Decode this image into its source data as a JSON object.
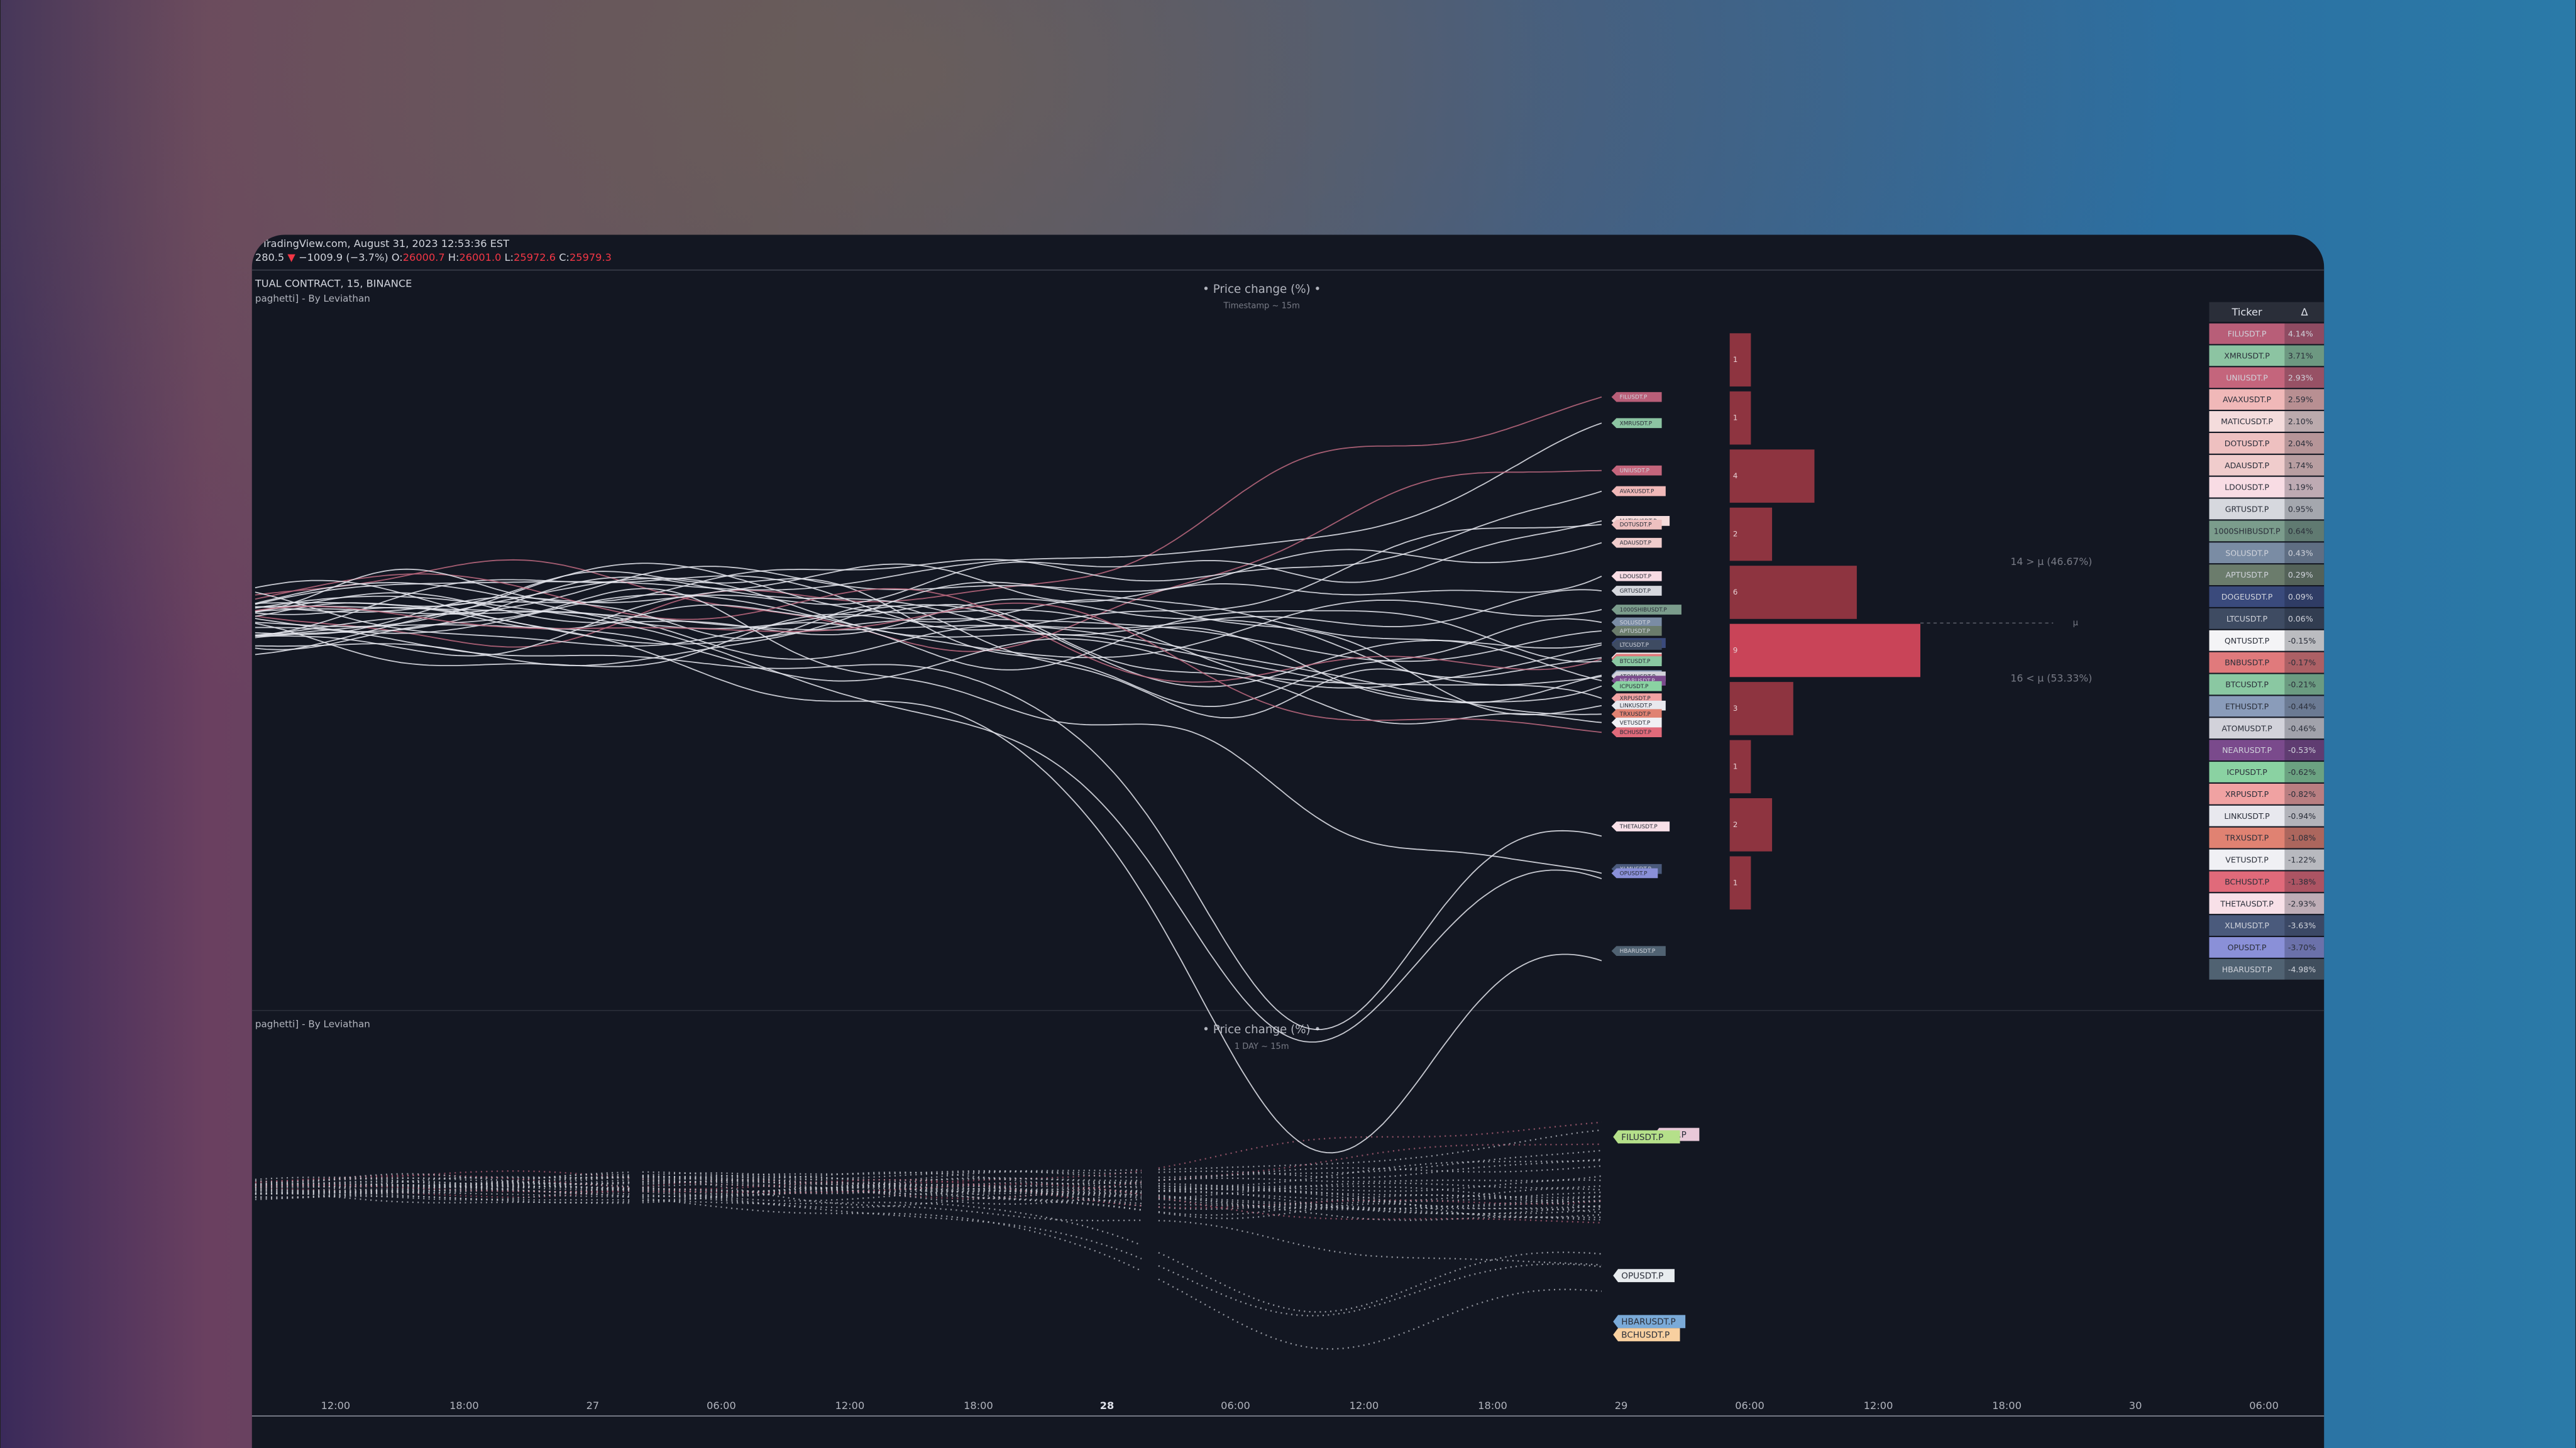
{
  "header": {
    "source": "TradingView.com, August 31, 2023 12:53:36 EST",
    "last": "280.5",
    "arrow": "▼",
    "change": "−1009.9 (−3.7%)",
    "ohlc": [
      {
        "key": "O:",
        "value": "26000.7"
      },
      {
        "key": "H:",
        "value": "26001.0"
      },
      {
        "key": "L:",
        "value": "25972.6"
      },
      {
        "key": "C:",
        "value": "25979.3"
      }
    ]
  },
  "pane1": {
    "symbol": "TUAL CONTRACT, 15, BINANCE",
    "indicator": "paghetti] - By Leviathan",
    "title": "• Price change (%) •",
    "subtitle": "Timestamp ~ 15m"
  },
  "histogram": {
    "counts": [
      1,
      1,
      4,
      2,
      6,
      9,
      3,
      1,
      2,
      1
    ],
    "above": "14 > μ (46.67%)",
    "below": "16 < μ (53.33%)",
    "mean": "μ"
  },
  "table": {
    "headers": [
      "Ticker",
      "Δ"
    ],
    "rows": [
      {
        "ticker": "FILUSDT.P",
        "delta": "4.14%",
        "color": "#b85e78"
      },
      {
        "ticker": "XMRUSDT.P",
        "delta": "3.71%",
        "color": "#8cc4a2"
      },
      {
        "ticker": "UNIUSDT.P",
        "delta": "2.93%",
        "color": "#c4657c"
      },
      {
        "ticker": "AVAXUSDT.P",
        "delta": "2.59%",
        "color": "#f0b8b8"
      },
      {
        "ticker": "MATICUSDT.P",
        "delta": "2.10%",
        "color": "#f4dcdc"
      },
      {
        "ticker": "DOTUSDT.P",
        "delta": "2.04%",
        "color": "#eec0c0"
      },
      {
        "ticker": "ADAUSDT.P",
        "delta": "1.74%",
        "color": "#f0cccc"
      },
      {
        "ticker": "LDOUSDT.P",
        "delta": "1.19%",
        "color": "#f8dce4"
      },
      {
        "ticker": "GRTUSDT.P",
        "delta": "0.95%",
        "color": "#d6d8de"
      },
      {
        "ticker": "1000SHIBUSDT.P",
        "delta": "0.64%",
        "color": "#7b9c8c"
      },
      {
        "ticker": "SOLUSDT.P",
        "delta": "0.43%",
        "color": "#7a8ca4"
      },
      {
        "ticker": "APTUSDT.P",
        "delta": "0.29%",
        "color": "#6b7c6c"
      },
      {
        "ticker": "DOGEUSDT.P",
        "delta": "0.09%",
        "color": "#3a4a7c"
      },
      {
        "ticker": "LTCUSDT.P",
        "delta": "0.06%",
        "color": "#3e4b62"
      },
      {
        "ticker": "QNTUSDT.P",
        "delta": "-0.15%",
        "color": "#f4f4f6"
      },
      {
        "ticker": "BNBUSDT.P",
        "delta": "-0.17%",
        "color": "#e07a7c"
      },
      {
        "ticker": "BTCUSDT.P",
        "delta": "-0.21%",
        "color": "#8ac8a2"
      },
      {
        "ticker": "ETHUSDT.P",
        "delta": "-0.44%",
        "color": "#8a9cba"
      },
      {
        "ticker": "ATOMUSDT.P",
        "delta": "-0.46%",
        "color": "#d2d2da"
      },
      {
        "ticker": "NEARUSDT.P",
        "delta": "-0.53%",
        "color": "#7a4a8c"
      },
      {
        "ticker": "ICPUSDT.P",
        "delta": "-0.62%",
        "color": "#8ad2a2"
      },
      {
        "ticker": "XRPUSDT.P",
        "delta": "-0.82%",
        "color": "#f0a2a2"
      },
      {
        "ticker": "LINKUSDT.P",
        "delta": "-0.94%",
        "color": "#e8e8ee"
      },
      {
        "ticker": "TRXUSDT.P",
        "delta": "-1.08%",
        "color": "#e08272"
      },
      {
        "ticker": "VETUSDT.P",
        "delta": "-1.22%",
        "color": "#f0f0f4"
      },
      {
        "ticker": "BCHUSDT.P",
        "delta": "-1.38%",
        "color": "#e06a7a"
      },
      {
        "ticker": "THETAUSDT.P",
        "delta": "-2.93%",
        "color": "#f8e0e8"
      },
      {
        "ticker": "XLMUSDT.P",
        "delta": "-3.63%",
        "color": "#4a5a7c"
      },
      {
        "ticker": "OPUSDT.P",
        "delta": "-3.70%",
        "color": "#8a90d8"
      },
      {
        "ticker": "HBARUSDT.P",
        "delta": "-4.98%",
        "color": "#506272"
      }
    ]
  },
  "pane2": {
    "indicator": "paghetti] - By Leviathan",
    "title": "• Price change (%) •",
    "subtitle": "1 DAY ~ 15m",
    "labels": [
      {
        "text": "SDT.P",
        "color": "#e8c8d8"
      },
      {
        "text": "FILUSDT.P",
        "color": "#b5e08a"
      },
      {
        "text": "OPUSDT.P",
        "color": "#e8ecef"
      },
      {
        "text": "HBARUSDT.P",
        "color": "#7aaad8"
      },
      {
        "text": "BCHUSDT.P",
        "color": "#f8d0a0"
      }
    ]
  },
  "time_axis": [
    "12:00",
    "18:00",
    "27",
    "06:00",
    "12:00",
    "18:00",
    "28",
    "06:00",
    "12:00",
    "18:00",
    "29",
    "06:00",
    "12:00",
    "18:00",
    "30",
    "06:00"
  ]
}
